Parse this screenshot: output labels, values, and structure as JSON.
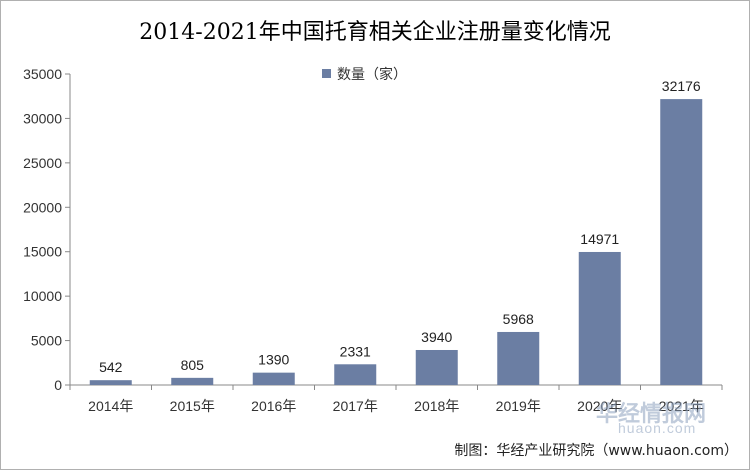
{
  "chart_data": {
    "type": "bar",
    "title": "2014-2021年中国托育相关企业注册量变化情况",
    "categories": [
      "2014年",
      "2015年",
      "2016年",
      "2017年",
      "2018年",
      "2019年",
      "2020年",
      "2021年"
    ],
    "series": [
      {
        "name": "数量（家）",
        "values": [
          542,
          805,
          1390,
          2331,
          3940,
          5968,
          14971,
          32176
        ]
      }
    ],
    "ylim": [
      0,
      35000
    ],
    "yticks": [
      0,
      5000,
      10000,
      15000,
      20000,
      25000,
      30000,
      35000
    ],
    "grid": false,
    "legend_position": "top-center",
    "bar_color": "#6b7ea3",
    "data_labels": true
  },
  "source": "制图：华经产业研究院（www.huaon.com）",
  "watermark": {
    "text_cn": "华经情报网",
    "text_en": "huaon.com"
  }
}
